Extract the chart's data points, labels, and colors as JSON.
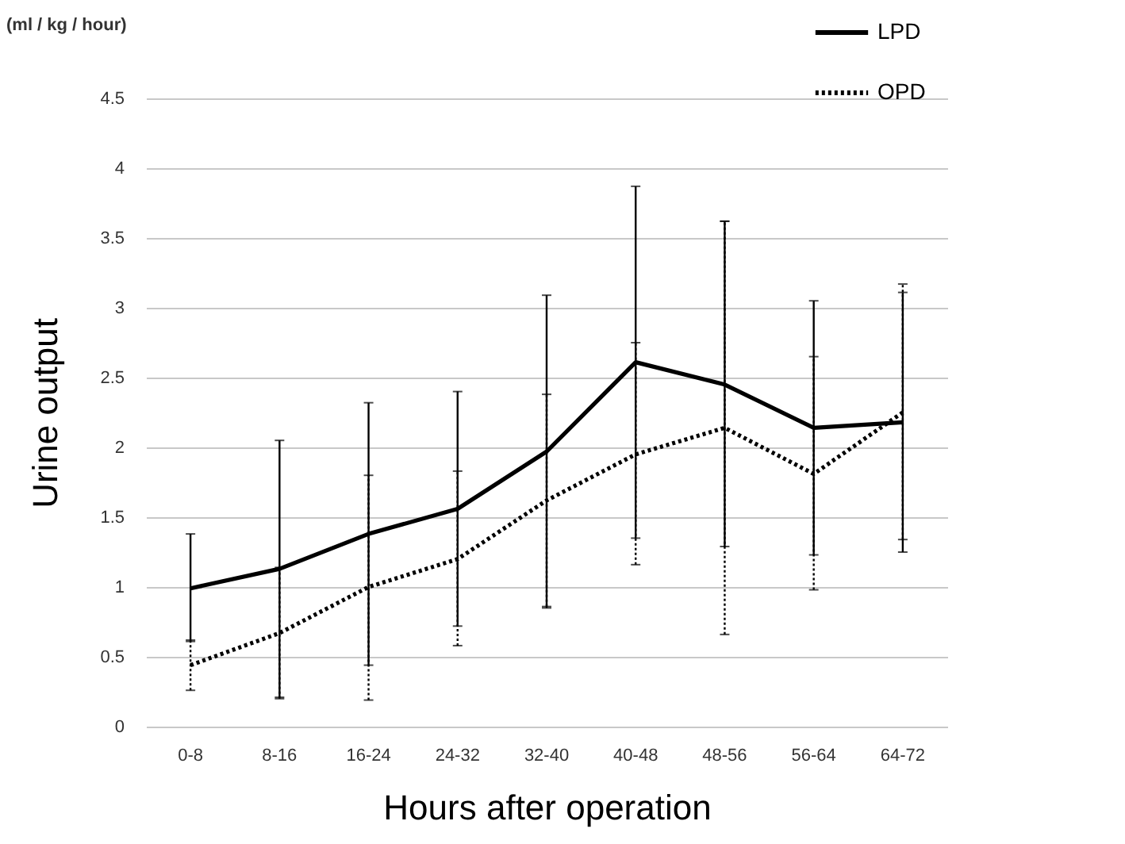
{
  "chart_data": {
    "type": "line",
    "xlabel": "Hours after operation",
    "ylabel": "Urine output",
    "annotations": [
      "(ml / kg / hour)"
    ],
    "categories": [
      "0-8",
      "8-16",
      "16-24",
      "24-32",
      "32-40",
      "40-48",
      "48-56",
      "56-64",
      "64-72"
    ],
    "series": [
      {
        "name": "LPD",
        "color": "#000000",
        "line_style": "solid",
        "values": [
          0.99,
          1.13,
          1.38,
          1.56,
          1.97,
          2.61,
          2.45,
          2.14,
          2.18
        ],
        "errors": [
          [
            0.61,
            1.38
          ],
          [
            0.21,
            2.05
          ],
          [
            0.44,
            2.32
          ],
          [
            0.72,
            2.4
          ],
          [
            0.85,
            3.09
          ],
          [
            1.35,
            3.87
          ],
          [
            1.29,
            3.62
          ],
          [
            1.23,
            3.05
          ],
          [
            1.25,
            3.11
          ]
        ]
      },
      {
        "name": "OPD",
        "color": "#000000",
        "line_style": "dotted",
        "values": [
          0.44,
          0.67,
          1.0,
          1.2,
          1.62,
          1.95,
          2.14,
          1.81,
          2.25
        ],
        "errors": [
          [
            0.26,
            0.62
          ],
          [
            0.2,
            1.14
          ],
          [
            0.19,
            1.8
          ],
          [
            0.58,
            1.83
          ],
          [
            0.86,
            2.38
          ],
          [
            1.16,
            2.75
          ],
          [
            0.66,
            3.62
          ],
          [
            0.98,
            2.65
          ],
          [
            1.34,
            3.17
          ]
        ]
      }
    ],
    "ylim": [
      0,
      4.5
    ],
    "yticks": [
      0,
      0.5,
      1,
      1.5,
      2,
      2.5,
      3,
      3.5,
      4,
      4.5
    ],
    "grid": "y",
    "legend": "top right",
    "marker": "none"
  }
}
